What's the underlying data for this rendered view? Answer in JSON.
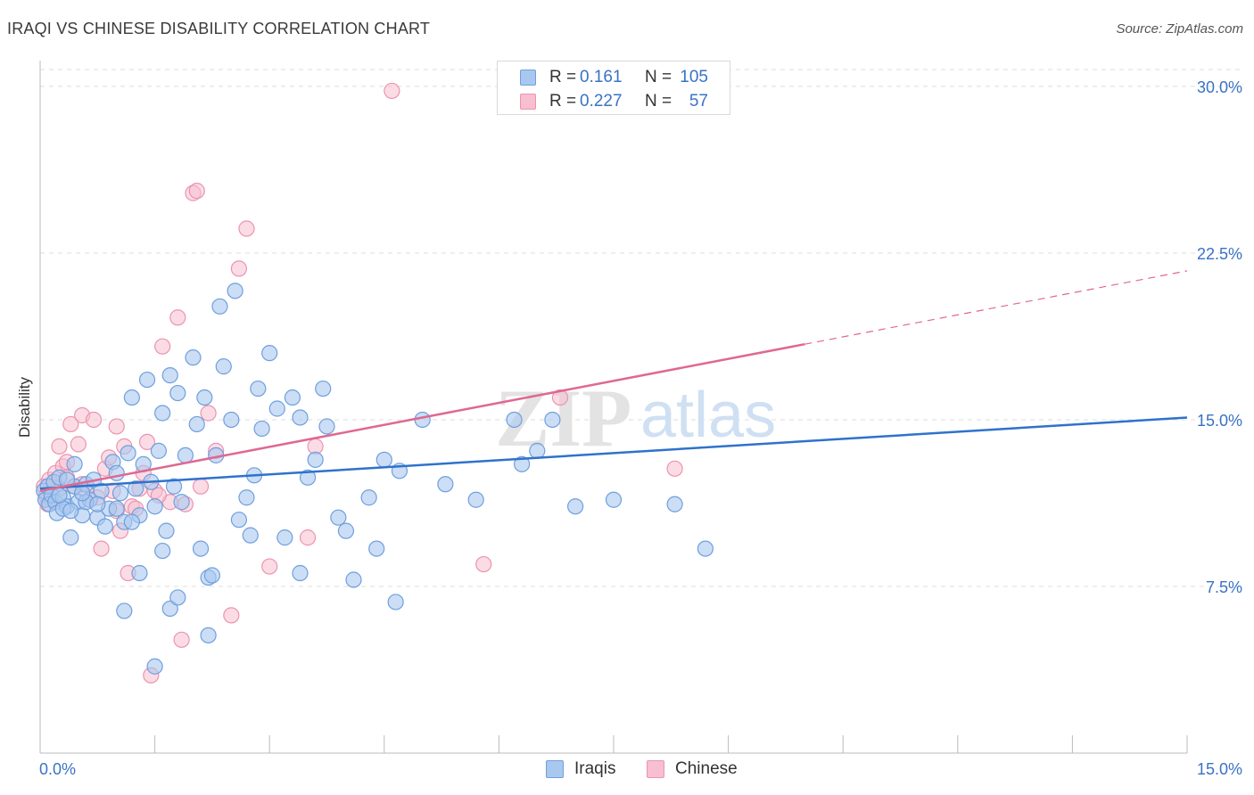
{
  "header": {
    "title": "IRAQI VS CHINESE DISABILITY CORRELATION CHART",
    "source": "Source: ZipAtlas.com"
  },
  "watermark": {
    "part1": "ZIP",
    "part2": "atlas"
  },
  "legend": {
    "rows": [
      {
        "r_label": "R =",
        "r_value": "0.161",
        "n_label": "N =",
        "n_value": "105"
      },
      {
        "r_label": "R =",
        "r_value": "0.227",
        "n_label": "N =",
        "n_value": "57"
      }
    ]
  },
  "bottom_legend": {
    "iraqis": "Iraqis",
    "chinese": "Chinese"
  },
  "colors": {
    "iraqis_fill": "#a9c8ef",
    "iraqis_stroke": "#6f9fde",
    "iraqis_line": "#2f72cc",
    "chinese_fill": "#f7bfd0",
    "chinese_stroke": "#ec93b0",
    "chinese_line": "#e06890",
    "value_text": "#3a72c6",
    "grid": "#dddddd"
  },
  "chart_data": {
    "type": "scatter",
    "title": "IRAQI VS CHINESE DISABILITY CORRELATION CHART",
    "xlabel": "",
    "ylabel": "Disability",
    "xlim": [
      0,
      15
    ],
    "ylim": [
      0,
      31
    ],
    "x_tick_labels": [
      "0.0%",
      "15.0%"
    ],
    "y_ticks": [
      7.5,
      15,
      22.5,
      30
    ],
    "y_tick_labels": [
      "7.5%",
      "15.0%",
      "22.5%",
      "30.0%"
    ],
    "grid": true,
    "series": [
      {
        "name": "Iraqis",
        "R": 0.161,
        "N": 105,
        "trend": {
          "x0": 0,
          "y0": 11.9,
          "x1": 15,
          "y1": 15.1
        },
        "points": [
          [
            0.05,
            11.8
          ],
          [
            0.07,
            11.4
          ],
          [
            0.1,
            12.0
          ],
          [
            0.12,
            11.2
          ],
          [
            0.15,
            11.6
          ],
          [
            0.18,
            12.2
          ],
          [
            0.2,
            11.3
          ],
          [
            0.22,
            10.8
          ],
          [
            0.25,
            12.4
          ],
          [
            0.3,
            11.5
          ],
          [
            0.35,
            11.1
          ],
          [
            0.4,
            9.7
          ],
          [
            0.45,
            12.0
          ],
          [
            0.5,
            11.3
          ],
          [
            0.55,
            10.7
          ],
          [
            0.6,
            12.1
          ],
          [
            0.65,
            11.4
          ],
          [
            0.7,
            12.3
          ],
          [
            0.75,
            10.6
          ],
          [
            0.8,
            11.8
          ],
          [
            0.85,
            10.2
          ],
          [
            0.9,
            11.0
          ],
          [
            0.95,
            13.1
          ],
          [
            1.0,
            12.6
          ],
          [
            1.05,
            11.7
          ],
          [
            1.1,
            10.4
          ],
          [
            1.15,
            13.5
          ],
          [
            1.2,
            16.0
          ],
          [
            1.25,
            11.9
          ],
          [
            1.3,
            10.7
          ],
          [
            1.35,
            13.0
          ],
          [
            1.4,
            16.8
          ],
          [
            1.45,
            12.2
          ],
          [
            1.5,
            11.1
          ],
          [
            1.55,
            13.6
          ],
          [
            1.6,
            15.3
          ],
          [
            1.65,
            10.0
          ],
          [
            1.7,
            17.0
          ],
          [
            1.75,
            12.0
          ],
          [
            1.8,
            16.2
          ],
          [
            1.85,
            11.3
          ],
          [
            1.9,
            13.4
          ],
          [
            2.0,
            17.8
          ],
          [
            2.05,
            14.8
          ],
          [
            2.1,
            9.2
          ],
          [
            2.15,
            16.0
          ],
          [
            2.2,
            7.9
          ],
          [
            2.3,
            13.4
          ],
          [
            2.35,
            20.1
          ],
          [
            2.4,
            17.4
          ],
          [
            2.5,
            15.0
          ],
          [
            2.55,
            20.8
          ],
          [
            2.6,
            10.5
          ],
          [
            2.7,
            11.5
          ],
          [
            2.75,
            9.8
          ],
          [
            2.8,
            12.5
          ],
          [
            2.85,
            16.4
          ],
          [
            2.9,
            14.6
          ],
          [
            3.0,
            18.0
          ],
          [
            3.1,
            15.5
          ],
          [
            3.3,
            16.0
          ],
          [
            3.4,
            15.1
          ],
          [
            3.5,
            12.4
          ],
          [
            3.6,
            13.2
          ],
          [
            3.7,
            16.4
          ],
          [
            3.75,
            14.7
          ],
          [
            3.9,
            10.6
          ],
          [
            4.0,
            10.0
          ],
          [
            4.1,
            7.8
          ],
          [
            4.3,
            11.5
          ],
          [
            4.4,
            9.2
          ],
          [
            4.5,
            13.2
          ],
          [
            4.65,
            6.8
          ],
          [
            5.0,
            15.0
          ],
          [
            5.3,
            12.1
          ],
          [
            5.7,
            11.4
          ],
          [
            6.2,
            15.0
          ],
          [
            6.3,
            13.0
          ],
          [
            6.5,
            13.6
          ],
          [
            6.7,
            15.0
          ],
          [
            7.0,
            11.1
          ],
          [
            7.5,
            11.4
          ],
          [
            8.3,
            11.2
          ],
          [
            8.7,
            9.2
          ],
          [
            1.1,
            6.4
          ],
          [
            1.5,
            3.9
          ],
          [
            1.7,
            6.5
          ],
          [
            1.8,
            7.0
          ],
          [
            2.2,
            5.3
          ],
          [
            1.3,
            8.1
          ],
          [
            0.6,
            11.3
          ],
          [
            0.3,
            11.0
          ],
          [
            0.25,
            11.6
          ],
          [
            0.4,
            10.9
          ],
          [
            0.55,
            11.7
          ],
          [
            0.75,
            11.2
          ],
          [
            1.0,
            11.0
          ],
          [
            1.2,
            10.4
          ],
          [
            0.35,
            12.3
          ],
          [
            0.45,
            13.0
          ],
          [
            3.2,
            9.7
          ],
          [
            3.4,
            8.1
          ],
          [
            4.7,
            12.7
          ],
          [
            2.25,
            8.0
          ],
          [
            1.6,
            9.1
          ]
        ]
      },
      {
        "name": "Chinese",
        "R": 0.227,
        "N": 57,
        "trend": {
          "x0": 0,
          "y0": 11.8,
          "x1": 10,
          "y1": 18.4,
          "dash_to_x": 15,
          "dash_to_y": 21.7
        },
        "points": [
          [
            0.05,
            12.0
          ],
          [
            0.08,
            11.6
          ],
          [
            0.1,
            11.2
          ],
          [
            0.12,
            12.3
          ],
          [
            0.15,
            11.4
          ],
          [
            0.2,
            12.6
          ],
          [
            0.25,
            13.8
          ],
          [
            0.3,
            12.9
          ],
          [
            0.35,
            12.4
          ],
          [
            0.4,
            14.8
          ],
          [
            0.45,
            12.0
          ],
          [
            0.5,
            13.9
          ],
          [
            0.55,
            15.2
          ],
          [
            0.6,
            11.8
          ],
          [
            0.65,
            11.4
          ],
          [
            0.7,
            15.0
          ],
          [
            0.75,
            11.5
          ],
          [
            0.8,
            9.2
          ],
          [
            0.85,
            12.8
          ],
          [
            0.9,
            13.3
          ],
          [
            0.95,
            11.8
          ],
          [
            1.0,
            14.7
          ],
          [
            1.05,
            10.0
          ],
          [
            1.1,
            13.8
          ],
          [
            1.15,
            8.1
          ],
          [
            1.2,
            11.1
          ],
          [
            1.25,
            11.0
          ],
          [
            1.3,
            11.9
          ],
          [
            1.35,
            12.6
          ],
          [
            1.4,
            14.0
          ],
          [
            1.5,
            11.8
          ],
          [
            1.6,
            18.3
          ],
          [
            1.7,
            11.3
          ],
          [
            1.8,
            19.6
          ],
          [
            1.9,
            11.2
          ],
          [
            2.0,
            25.2
          ],
          [
            2.1,
            12.0
          ],
          [
            2.2,
            15.3
          ],
          [
            2.3,
            13.6
          ],
          [
            2.5,
            6.2
          ],
          [
            2.6,
            21.8
          ],
          [
            2.7,
            23.6
          ],
          [
            3.0,
            8.4
          ],
          [
            3.5,
            9.7
          ],
          [
            3.6,
            13.8
          ],
          [
            4.6,
            29.8
          ],
          [
            5.8,
            8.5
          ],
          [
            6.8,
            16.0
          ],
          [
            8.3,
            12.8
          ],
          [
            1.45,
            3.5
          ],
          [
            1.85,
            5.1
          ],
          [
            2.05,
            25.3
          ],
          [
            1.0,
            10.9
          ],
          [
            0.55,
            12.1
          ],
          [
            0.25,
            11.9
          ],
          [
            1.55,
            11.6
          ],
          [
            0.35,
            13.1
          ]
        ]
      }
    ]
  }
}
